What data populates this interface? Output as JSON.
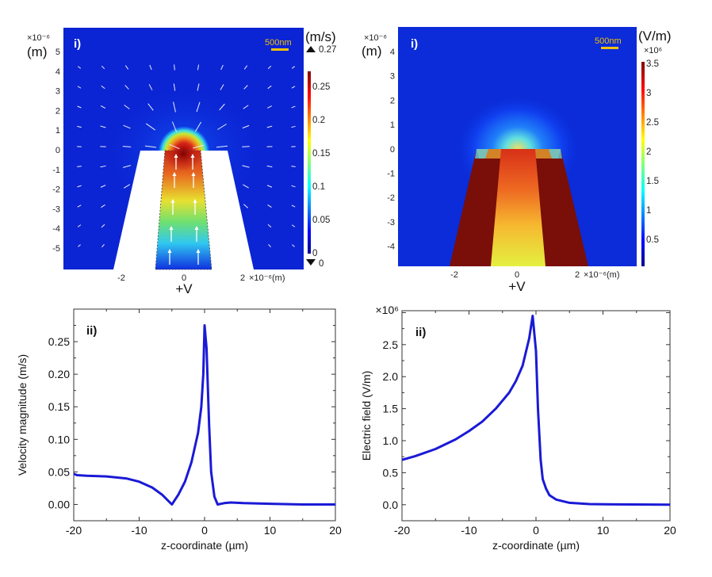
{
  "panels": {
    "velocity_map": {
      "label": "i)",
      "unit": "(m/s)",
      "max_label": "0.27",
      "min_label": "0",
      "scale_bar": "500nm",
      "y_multiplier": "×10⁻⁶",
      "y_unit": "(m)",
      "x_suffix": "×10⁻⁶(m)",
      "electrode": "+V",
      "y_ticks": [
        "5",
        "4",
        "3",
        "2",
        "1",
        "0",
        "-1",
        "-2",
        "-3",
        "-4",
        "-5"
      ],
      "x_ticks": [
        "-2",
        "0",
        "2"
      ],
      "colorbar_ticks": [
        "0.25",
        "0.2",
        "0.15",
        "0.1",
        "0.05",
        "0"
      ]
    },
    "field_map": {
      "label": "i)",
      "unit": "(V/m)",
      "colorbar_multiplier": "×10⁶",
      "scale_bar": "500nm",
      "y_multiplier": "×10⁻⁶",
      "y_unit": "(m)",
      "x_suffix": "×10⁻⁶(m)",
      "electrode": "+V",
      "y_ticks": [
        "4",
        "3",
        "2",
        "1",
        "0",
        "-1",
        "-2",
        "-3",
        "-4"
      ],
      "x_ticks": [
        "-2",
        "0",
        "2"
      ],
      "colorbar_ticks": [
        "3.5",
        "3",
        "2.5",
        "2",
        "1.5",
        "1",
        "0.5"
      ]
    }
  },
  "colors": {
    "line": "#1a1ad6",
    "map_background": "#0b24d4",
    "electrode_field": "#7a0e08",
    "colormap": [
      "#00008f",
      "#0000ff",
      "#00ffff",
      "#ffff00",
      "#ff0000",
      "#800000"
    ]
  },
  "chart_data": [
    {
      "type": "line",
      "panel_label": "ii)",
      "title": "",
      "xlabel": "z-coordinate (µm)",
      "ylabel": "Velocity magnitude (m/s)",
      "xlim": [
        -20,
        20
      ],
      "ylim": [
        -0.025,
        0.3
      ],
      "x_ticks": [
        -20,
        -10,
        0,
        10,
        20
      ],
      "y_ticks": [
        "0.00",
        "0.05",
        "0.10",
        "0.15",
        "0.20",
        "0.25"
      ],
      "grid": false,
      "series": [
        {
          "x": [
            -20,
            -19.5,
            -18,
            -15,
            -12,
            -10,
            -8,
            -6.5,
            -5,
            -4,
            -3,
            -2,
            -1,
            -0.5,
            -0.2,
            0,
            0.3,
            0.7,
            1,
            1.5,
            2,
            3,
            4,
            6,
            10,
            15,
            20
          ],
          "y": [
            0.047,
            0.045,
            0.044,
            0.043,
            0.04,
            0.035,
            0.026,
            0.015,
            0.0,
            0.015,
            0.035,
            0.065,
            0.11,
            0.15,
            0.2,
            0.275,
            0.24,
            0.12,
            0.05,
            0.012,
            0.0,
            0.002,
            0.003,
            0.002,
            0.001,
            0.0,
            0.0
          ]
        }
      ]
    },
    {
      "type": "line",
      "panel_label": "ii)",
      "title": "",
      "xlabel": "z-coordinate (µm)",
      "ylabel": "Electric field (V/m)",
      "y_multiplier": "×10⁶",
      "xlim": [
        -20,
        20
      ],
      "ylim": [
        -0.25,
        3.03
      ],
      "x_ticks": [
        -20,
        -10,
        0,
        10,
        20
      ],
      "y_ticks": [
        "0.0",
        "0.5",
        "1.0",
        "1.5",
        "2.0",
        "2.5"
      ],
      "grid": false,
      "series": [
        {
          "x": [
            -20,
            -18,
            -15,
            -12,
            -10,
            -8,
            -6,
            -4,
            -3,
            -2,
            -1,
            -0.5,
            0,
            0.3,
            0.7,
            1,
            1.5,
            2,
            3,
            5,
            8,
            12,
            20
          ],
          "y": [
            0.7,
            0.76,
            0.87,
            1.02,
            1.15,
            1.3,
            1.5,
            1.75,
            1.93,
            2.17,
            2.6,
            2.95,
            2.4,
            1.5,
            0.7,
            0.4,
            0.25,
            0.15,
            0.08,
            0.03,
            0.01,
            0.005,
            0.0
          ]
        }
      ]
    }
  ]
}
